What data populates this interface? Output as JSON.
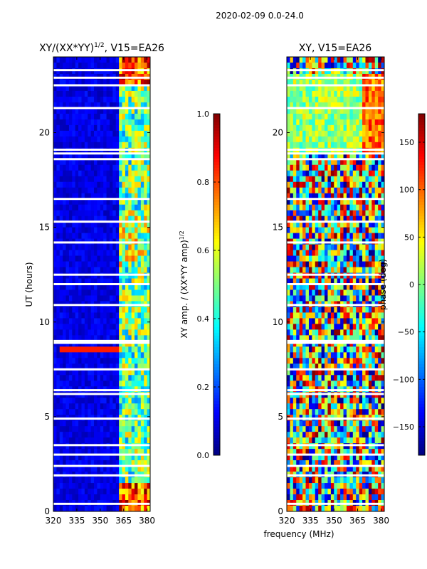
{
  "figure": {
    "suptitle": "2020-02-09 0.0-24.0",
    "xlabel": "frequency (MHz)"
  },
  "chart_data": [
    {
      "type": "heatmap",
      "title": "XY/(XX*YY)^{1/2}, V15=EA26",
      "title_main": "XY/(XX*YY)",
      "title_sup": "1/2",
      "title_tail": ", V15=EA26",
      "xlabel": "frequency (MHz)",
      "ylabel": "UT (hours)",
      "xlim": [
        320,
        382
      ],
      "ylim": [
        0,
        24
      ],
      "xticks": [
        320,
        335,
        350,
        365,
        380
      ],
      "yticks": [
        0,
        5,
        10,
        15,
        20
      ],
      "colorscale": "jet",
      "zlim": [
        0.0,
        1.0
      ],
      "colorbar_label": "XY amp. / (XX*YY amp)^{1/2}",
      "colorbar_label_main": "XY amp. / (XX*YY amp)",
      "colorbar_label_sup": "1/2",
      "colorbar_ticks": [
        "0.0",
        "0.2",
        "0.4",
        "0.6",
        "0.8",
        "1.0"
      ],
      "colorbar_tick_values": [
        0.0,
        0.2,
        0.4,
        0.6,
        0.8,
        1.0
      ],
      "flagged_ut_hours": [
        0.4,
        1.9,
        2.4,
        3.0,
        3.5,
        4.9,
        6.2,
        6.4,
        7.5,
        8.9,
        9.0,
        10.9,
        12.0,
        12.5,
        14.2,
        15.3,
        16.5,
        18.6,
        18.9,
        19.1,
        21.3,
        22.5,
        22.9,
        23.3
      ]
    },
    {
      "type": "heatmap",
      "title": "XY, V15=EA26",
      "xlabel": "frequency (MHz)",
      "ylabel": "",
      "xlim": [
        320,
        382
      ],
      "ylim": [
        0,
        24
      ],
      "xticks": [
        320,
        335,
        350,
        365,
        380
      ],
      "yticks": [
        0,
        5,
        10,
        15,
        20
      ],
      "colorscale": "jet",
      "zlim": [
        -180,
        180
      ],
      "colorbar_label": "phase (deg)",
      "colorbar_ticks": [
        "−150",
        "−100",
        "−50",
        "0",
        "50",
        "100",
        "150"
      ],
      "colorbar_tick_values": [
        -150,
        -100,
        -50,
        0,
        50,
        100,
        150
      ],
      "flagged_ut_hours": [
        0.4,
        1.9,
        2.4,
        3.0,
        3.5,
        4.9,
        6.2,
        6.4,
        7.5,
        8.9,
        9.0,
        10.9,
        12.0,
        12.5,
        14.2,
        15.3,
        16.5,
        18.6,
        18.9,
        19.1,
        21.3,
        22.5,
        22.9,
        23.3
      ]
    }
  ]
}
